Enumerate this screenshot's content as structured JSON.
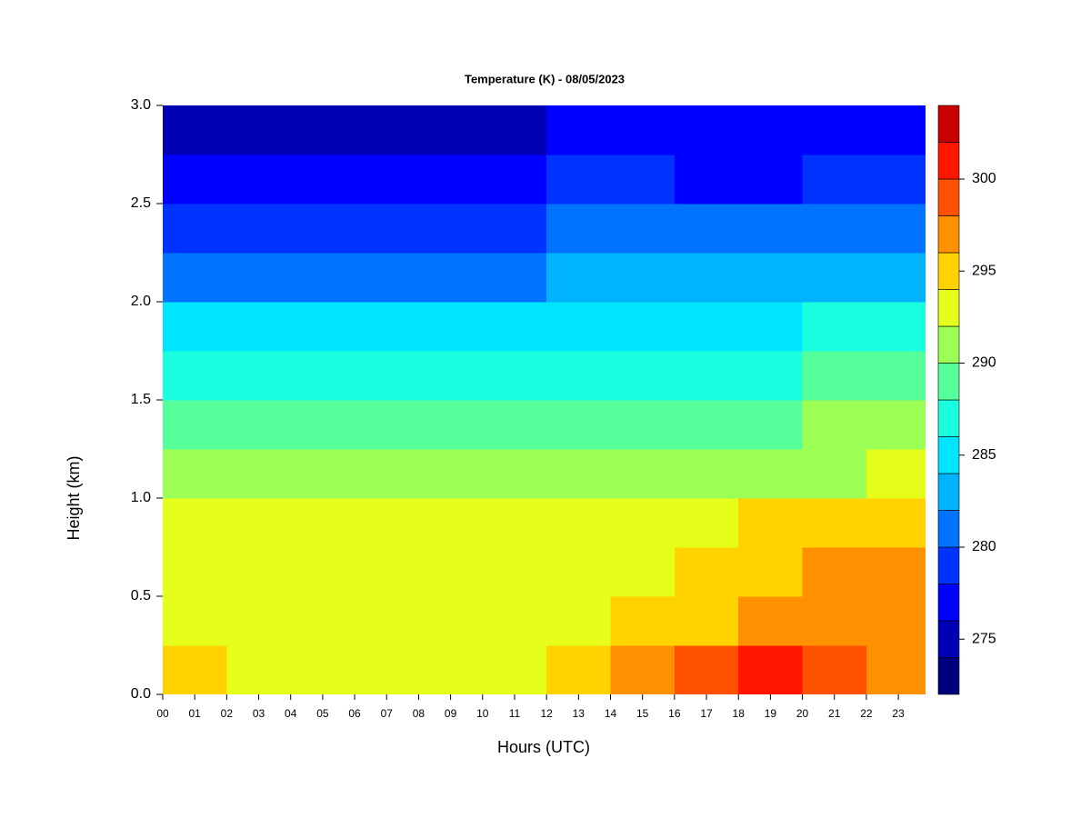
{
  "chart_data": {
    "type": "contour",
    "title": "Temperature (K) - 08/05/2023",
    "x_label": "Hours (UTC)",
    "y_label": "Height (km)",
    "xlim": [
      0,
      23.85
    ],
    "ylim": [
      0,
      3
    ],
    "xticks": [
      {
        "value": 0,
        "label": "00"
      },
      {
        "value": 1,
        "label": "01"
      },
      {
        "value": 2,
        "label": "02"
      },
      {
        "value": 3,
        "label": "03"
      },
      {
        "value": 4,
        "label": "04"
      },
      {
        "value": 5,
        "label": "05"
      },
      {
        "value": 6,
        "label": "06"
      },
      {
        "value": 7,
        "label": "07"
      },
      {
        "value": 8,
        "label": "08"
      },
      {
        "value": 9,
        "label": "09"
      },
      {
        "value": 10,
        "label": "10"
      },
      {
        "value": 11,
        "label": "11"
      },
      {
        "value": 12,
        "label": "12"
      },
      {
        "value": 13,
        "label": "13"
      },
      {
        "value": 14,
        "label": "14"
      },
      {
        "value": 15,
        "label": "15"
      },
      {
        "value": 16,
        "label": "16"
      },
      {
        "value": 17,
        "label": "17"
      },
      {
        "value": 18,
        "label": "18"
      },
      {
        "value": 19,
        "label": "19"
      },
      {
        "value": 20,
        "label": "20"
      },
      {
        "value": 21,
        "label": "21"
      },
      {
        "value": 22,
        "label": "22"
      },
      {
        "value": 23,
        "label": "23"
      }
    ],
    "yticks": [
      {
        "value": 0,
        "label": "0.0"
      },
      0.5,
      {
        "value": 1,
        "label": "1.0"
      },
      1.5,
      {
        "value": 2,
        "label": "2.0"
      },
      2.5,
      {
        "value": 3,
        "label": "3.0"
      }
    ],
    "x": [
      1,
      3,
      5,
      7,
      9,
      11,
      13,
      15,
      17,
      19,
      21,
      23
    ],
    "y": [
      0.125,
      0.375,
      0.625,
      0.875,
      1.125,
      1.375,
      1.625,
      1.875,
      2.125,
      2.375,
      2.625,
      2.875
    ],
    "z": [
      [
        294,
        293.5,
        293.5,
        293,
        293,
        293,
        294,
        296,
        298.5,
        300.5,
        299,
        297
      ],
      [
        293,
        293,
        293,
        293,
        293,
        293,
        293,
        294,
        295.5,
        296.5,
        297,
        297
      ],
      [
        293,
        293,
        293,
        293,
        293,
        293,
        293,
        293,
        294,
        295,
        296,
        296.5
      ],
      [
        293,
        292.5,
        292,
        292.5,
        292,
        292,
        292.5,
        293,
        293,
        294,
        294.5,
        295
      ],
      [
        291,
        291,
        290.5,
        291,
        290.5,
        291,
        291,
        291,
        291,
        291,
        291.5,
        292
      ],
      [
        289,
        289,
        289,
        289,
        289,
        289.5,
        289.5,
        289.5,
        289.5,
        289.5,
        290,
        290
      ],
      [
        287,
        287,
        287,
        287,
        287,
        287,
        287,
        287,
        287,
        287.5,
        288,
        288
      ],
      [
        285,
        285,
        285,
        285,
        285,
        285,
        285,
        285,
        285,
        285.5,
        286,
        286
      ],
      [
        281.5,
        281.5,
        281,
        281,
        281,
        281.5,
        282,
        282,
        282,
        282,
        283,
        283
      ],
      [
        279.5,
        279.5,
        279,
        279,
        279,
        279.5,
        280,
        280,
        280,
        280,
        281,
        281
      ],
      [
        277,
        277,
        277,
        277,
        277,
        277.5,
        278,
        278,
        277.5,
        277.5,
        278,
        278
      ],
      [
        275.5,
        275,
        275,
        275,
        275,
        275.5,
        276,
        276,
        276,
        276,
        276.5,
        276.5
      ]
    ],
    "levels": [
      272,
      274,
      276,
      278,
      280,
      282,
      284,
      286,
      288,
      290,
      292,
      294,
      296,
      298,
      300,
      302,
      304
    ],
    "colors": [
      "#00007f",
      "#0000b5",
      "#0000ff",
      "#0033ff",
      "#0073ff",
      "#00b3ff",
      "#00e5ff",
      "#1affdf",
      "#55ff99",
      "#9cff55",
      "#e5ff1a",
      "#ffd200",
      "#ff9000",
      "#ff5200",
      "#ff1500",
      "#c80000",
      "#800000"
    ],
    "colorbar_ticks": [
      275,
      280,
      285,
      290,
      295,
      300
    ]
  }
}
